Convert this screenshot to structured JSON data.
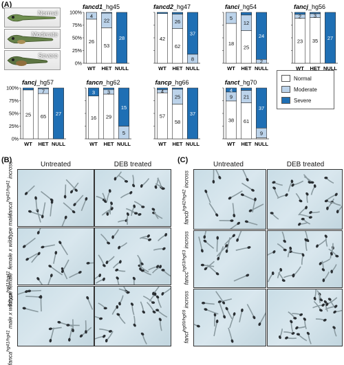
{
  "panels": {
    "a": "(A)",
    "b": "(B)",
    "c": "(C)"
  },
  "phenotypes": [
    "Normal",
    "Moderate",
    "Severe"
  ],
  "colors": {
    "normal": "#ffffff",
    "moderate": "#bcd3ea",
    "severe": "#1f6fb4"
  },
  "legend": {
    "normal": "Normal",
    "moderate": "Moderate",
    "severe": "Severe"
  },
  "chart_data": [
    {
      "type": "bar",
      "stacked": true,
      "title_gene": "fancd1",
      "title_suffix": "_hg45",
      "categories": [
        "WT",
        "HET",
        "NULL"
      ],
      "ylim": [
        0,
        100
      ],
      "yticks": [
        "0%",
        "25%",
        "50%",
        "75%",
        "100%"
      ],
      "series": [
        {
          "name": "Normal",
          "values": [
            26,
            53,
            0
          ]
        },
        {
          "name": "Moderate",
          "values": [
            4,
            22,
            0
          ]
        },
        {
          "name": "Severe",
          "values": [
            0,
            1,
            28
          ]
        }
      ],
      "show_yaxis": true
    },
    {
      "type": "bar",
      "stacked": true,
      "title_gene": "fancd2",
      "title_suffix": "_hg47",
      "categories": [
        "WT",
        "HET",
        "NULL"
      ],
      "ylim": [
        0,
        100
      ],
      "series": [
        {
          "name": "Normal",
          "values": [
            42,
            62,
            0
          ]
        },
        {
          "name": "Moderate",
          "values": [
            0,
            26,
            8
          ]
        },
        {
          "name": "Severe",
          "values": [
            1,
            3,
            37
          ]
        }
      ]
    },
    {
      "type": "bar",
      "stacked": true,
      "title_gene": "fanci",
      "title_suffix": "_hg54",
      "categories": [
        "WT",
        "HET",
        "NULL"
      ],
      "ylim": [
        0,
        100
      ],
      "series": [
        {
          "name": "Normal",
          "values": [
            18,
            25,
            0
          ]
        },
        {
          "name": "Moderate",
          "values": [
            5,
            12,
            2
          ]
        },
        {
          "name": "Severe",
          "values": [
            0,
            2,
            24
          ]
        }
      ]
    },
    {
      "type": "bar",
      "stacked": true,
      "title_gene": "fancj",
      "title_suffix": "_hg56",
      "categories": [
        "WT",
        "HET",
        "NULL"
      ],
      "ylim": [
        0,
        100
      ],
      "series": [
        {
          "name": "Normal",
          "values": [
            23,
            35,
            0
          ]
        },
        {
          "name": "Moderate",
          "values": [
            2,
            3,
            0
          ]
        },
        {
          "name": "Severe",
          "values": [
            1,
            1,
            27
          ]
        }
      ]
    },
    {
      "type": "bar",
      "stacked": true,
      "title_gene": "fancj",
      "title_suffix": "_hg57",
      "categories": [
        "WT",
        "HET",
        "NULL"
      ],
      "ylim": [
        0,
        100
      ],
      "yticks": [
        "0%",
        "25%",
        "50%",
        "75%",
        "100%"
      ],
      "series": [
        {
          "name": "Normal",
          "values": [
            25,
            65,
            0
          ]
        },
        {
          "name": "Moderate",
          "values": [
            0,
            7,
            0
          ]
        },
        {
          "name": "Severe",
          "values": [
            1,
            1,
            27
          ]
        }
      ],
      "show_yaxis": true
    },
    {
      "type": "bar",
      "stacked": true,
      "title_gene": "fancn",
      "title_suffix": "_hg62",
      "categories": [
        "WT",
        "HET",
        "NULL"
      ],
      "ylim": [
        0,
        100
      ],
      "series": [
        {
          "name": "Normal",
          "values": [
            16,
            29,
            0
          ]
        },
        {
          "name": "Moderate",
          "values": [
            0,
            3,
            5
          ]
        },
        {
          "name": "Severe",
          "values": [
            3,
            1,
            15
          ]
        }
      ]
    },
    {
      "type": "bar",
      "stacked": true,
      "title_gene": "fancp",
      "title_suffix": "_hg66",
      "categories": [
        "WT",
        "HET",
        "NULL"
      ],
      "ylim": [
        0,
        100
      ],
      "series": [
        {
          "name": "Normal",
          "values": [
            57,
            58,
            0
          ]
        },
        {
          "name": "Moderate",
          "values": [
            4,
            25,
            0
          ]
        },
        {
          "name": "Severe",
          "values": [
            2,
            2,
            37
          ]
        }
      ]
    },
    {
      "type": "bar",
      "stacked": true,
      "title_gene": "fanct",
      "title_suffix": "_hg70",
      "categories": [
        "WT",
        "HET",
        "NULL"
      ],
      "ylim": [
        0,
        100
      ],
      "series": [
        {
          "name": "Normal",
          "values": [
            38,
            61,
            1
          ]
        },
        {
          "name": "Moderate",
          "values": [
            9,
            21,
            9
          ]
        },
        {
          "name": "Severe",
          "values": [
            4,
            4,
            37
          ]
        }
      ]
    }
  ],
  "panel_b": {
    "col_heads": [
      "Untreated",
      "DEB treated"
    ],
    "rows": [
      {
        "gene": "fanca",
        "sup": "hg41/hg41",
        "rest": " incross"
      },
      {
        "gene": "fanca",
        "sup": "hg41/hg41",
        "rest": " female x wildtype male"
      },
      {
        "gene": "fanca",
        "sup": "hg41/hg41",
        "rest": " male x wildtype female"
      }
    ]
  },
  "panel_c": {
    "col_heads": [
      "Untreated",
      "DEB treated"
    ],
    "rows": [
      {
        "gene": "fancb",
        "sup": "hg42/hg42",
        "rest": " incross"
      },
      {
        "gene": "fancc",
        "sup": "hg63/hg63",
        "rest": " incross"
      },
      {
        "gene": "fancf",
        "sup": "hg69/hg69",
        "rest": " incross"
      }
    ]
  }
}
